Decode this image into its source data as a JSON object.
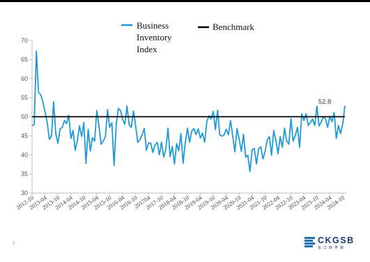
{
  "chart_data": {
    "type": "line",
    "title": "",
    "xlabel": "",
    "ylabel": "",
    "ylim": [
      30,
      70
    ],
    "yticks": [
      30,
      35,
      40,
      45,
      50,
      55,
      60,
      65,
      70
    ],
    "x_tick_labels": [
      "2012-10",
      "2013-04",
      "2013-10",
      "2014-04",
      "2014-10",
      "2015-04",
      "2015-10",
      "2016-04",
      "2016-10",
      "2017-04",
      "2017-10",
      "2018-04",
      "2018-10",
      "2019-04",
      "2019-10",
      "2020-04",
      "2020-10",
      "2021-04",
      "2021-10",
      "2022-04",
      "2022-10",
      "2023-04",
      "2023-10",
      "2024-04",
      "2024-10"
    ],
    "x_tick_display": [
      "2012-10",
      "2013-04",
      "2013-10",
      "2014-04",
      "2014-10",
      "2015-04",
      "2015-10",
      "2016-04",
      "2016-10",
      "201704",
      "2017-10",
      "2018-04",
      "2018-10",
      "2019-04",
      "2019-10",
      "2020-04",
      "2020-10",
      "2021-04",
      "2021-10",
      "2022-04",
      "2022-10",
      "2023-04",
      "2023-10",
      "2024-04",
      "2024-10"
    ],
    "grid": false,
    "legend_position": "top",
    "series": [
      {
        "name": "Business Inventory Index",
        "color": "#1f9ad6",
        "values": [
          47.6,
          48.0,
          67.2,
          56.3,
          55.8,
          53.9,
          51.3,
          48.6,
          44.1,
          44.9,
          53.9,
          45.6,
          43.0,
          46.8,
          47.2,
          49.0,
          48.2,
          50.4,
          44.3,
          46.4,
          41.2,
          43.8,
          47.6,
          44.8,
          48.5,
          37.8,
          46.7,
          41.0,
          44.5,
          43.6,
          51.6,
          47.7,
          42.8,
          43.6,
          44.8,
          51.9,
          47.2,
          48.4,
          37.2,
          47.9,
          52.2,
          51.6,
          49.3,
          48.0,
          52.8,
          47.9,
          47.2,
          51.5,
          47.7,
          43.3,
          44.0,
          45.3,
          46.9,
          41.2,
          43.1,
          43.1,
          40.6,
          42.6,
          43.3,
          40.0,
          43.3,
          39.4,
          41.5,
          47.0,
          39.5,
          42.2,
          37.6,
          43.0,
          41.1,
          45.6,
          37.8,
          43.1,
          47.0,
          43.3,
          46.2,
          46.9,
          45.3,
          46.8,
          44.4,
          45.7,
          43.3,
          48.7,
          50.2,
          49.4,
          51.4,
          46.6,
          51.7,
          45.3,
          44.9,
          45.2,
          46.7,
          45.3,
          49.0,
          44.9,
          40.8,
          46.9,
          44.1,
          40.9,
          45.4,
          39.4,
          39.9,
          35.6,
          41.3,
          41.7,
          37.6,
          41.6,
          42.1,
          38.9,
          40.9,
          43.9,
          44.8,
          39.9,
          46.4,
          43.8,
          40.3,
          44.8,
          42.0,
          47.0,
          43.7,
          42.8,
          49.5,
          43.6,
          45.1,
          47.2,
          42.0,
          50.8,
          49.0,
          50.8,
          47.7,
          48.5,
          49.4,
          47.7,
          52.8,
          47.6,
          48.6,
          50.0,
          49.4,
          47.2,
          50.1,
          48.7,
          51.1,
          44.3,
          47.7,
          45.6,
          48.1,
          52.9
        ],
        "annotation": {
          "index": 132,
          "text": "52.8"
        }
      },
      {
        "name": "Benchmark",
        "color": "#000000",
        "value": 50
      }
    ]
  },
  "footer": {
    "logo_text": "CKGSB",
    "logo_sub": "长江商学院",
    "slide_number": "1"
  }
}
